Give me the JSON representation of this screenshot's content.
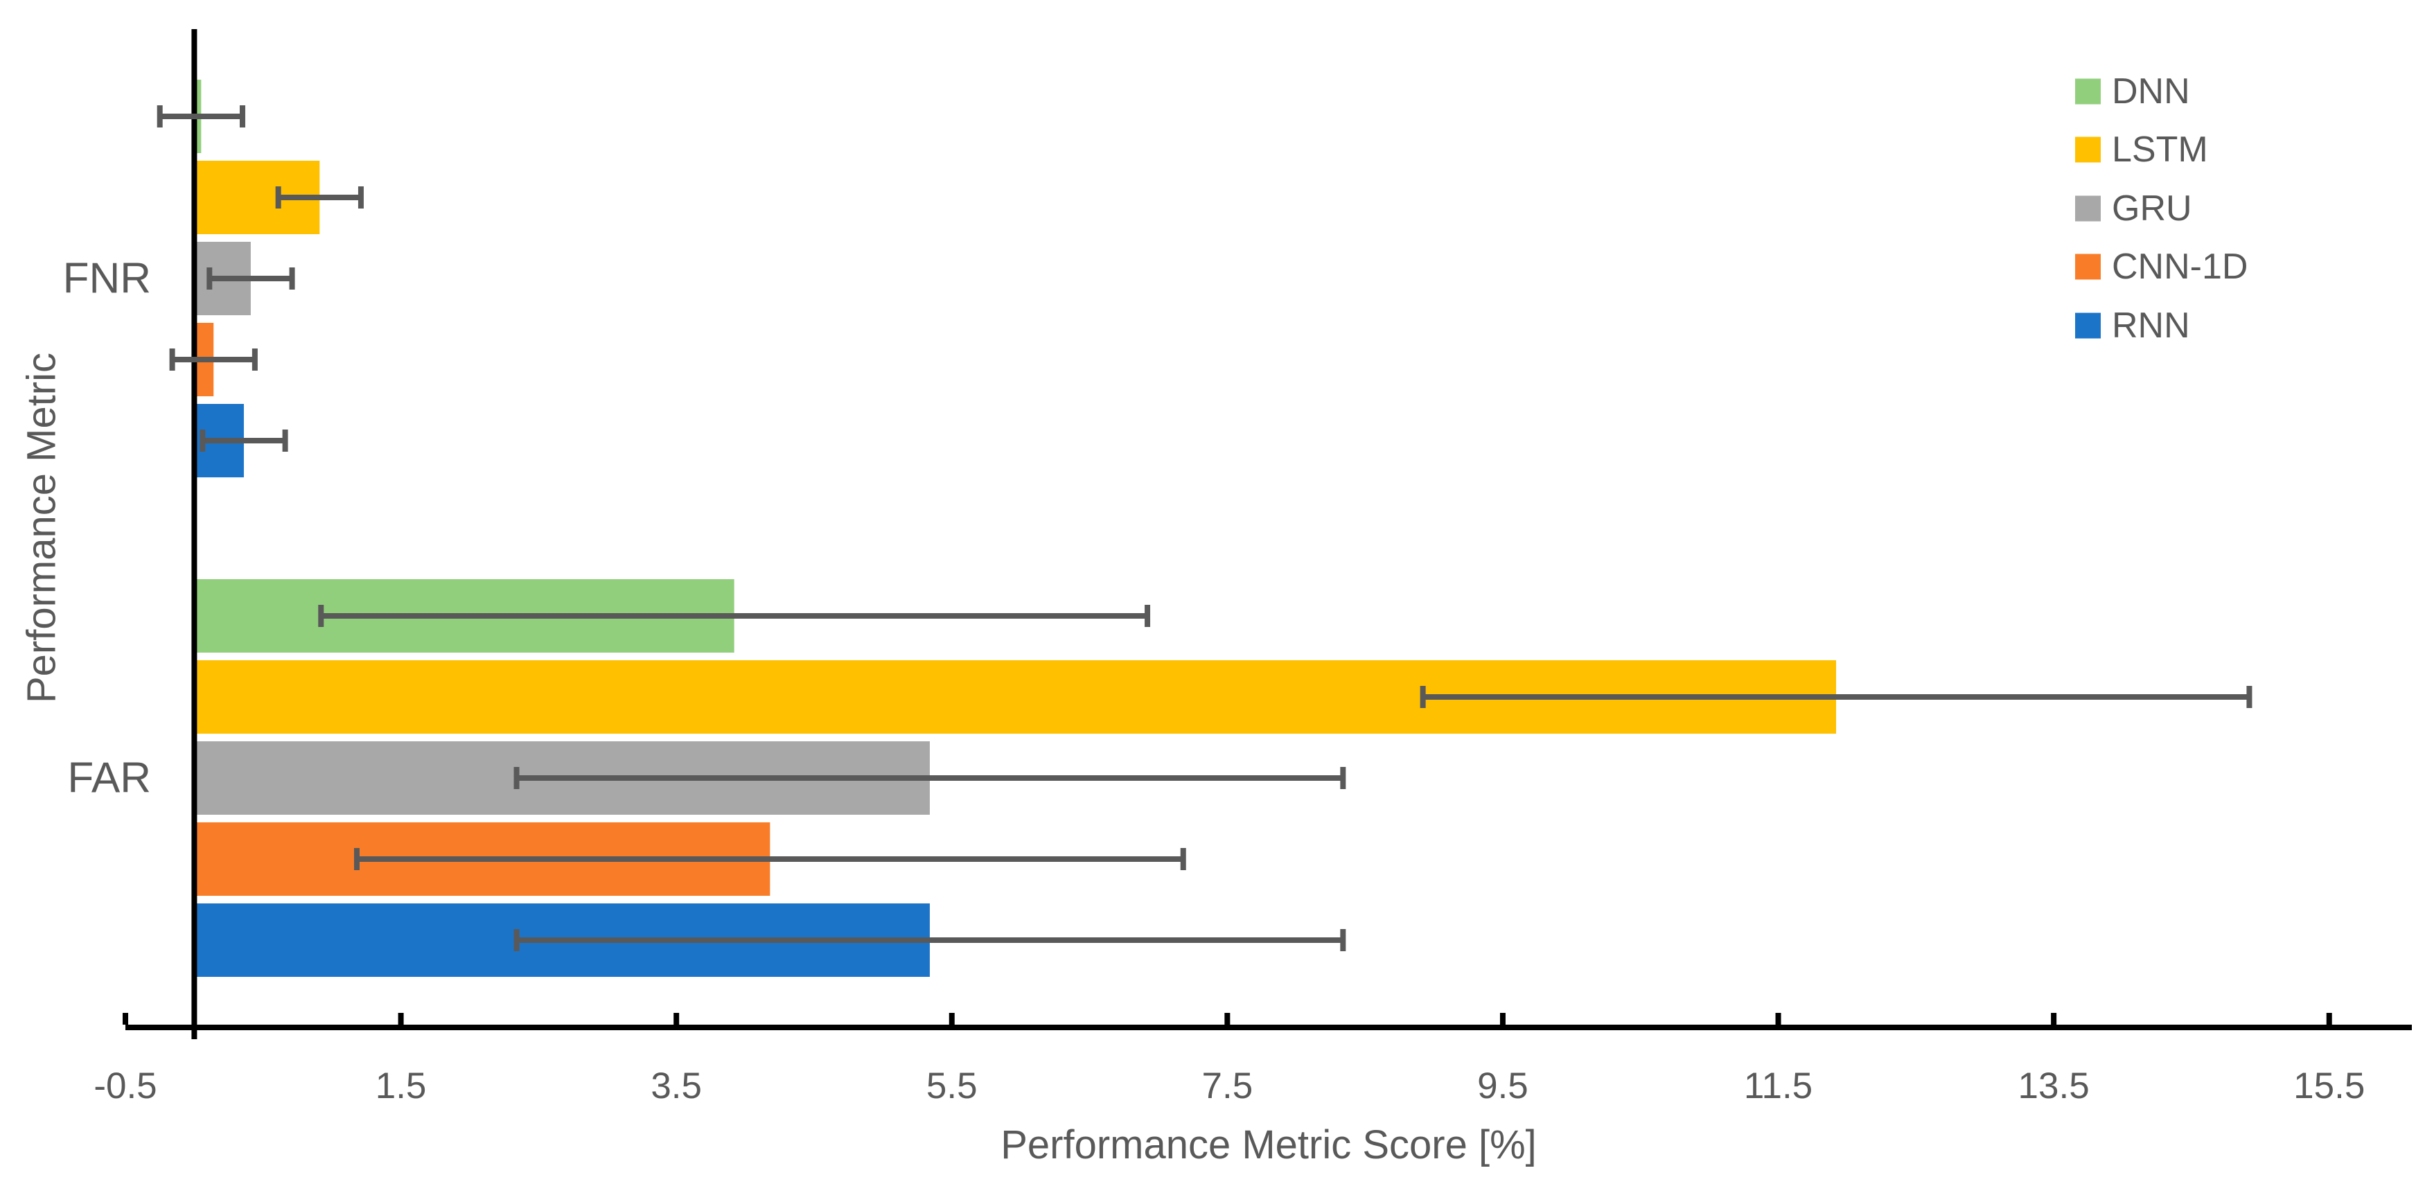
{
  "chart_data": {
    "type": "bar",
    "orientation": "horizontal",
    "title": "",
    "xlabel": "Performance Metric Score [%]",
    "ylabel": "Performance Metric",
    "categories": [
      "FNR",
      "FAR"
    ],
    "x_ticks": [
      -0.5,
      1.5,
      3.5,
      5.5,
      7.5,
      9.5,
      11.5,
      13.5,
      15.5
    ],
    "x_tick_labels": [
      "-0.5",
      "1.5",
      "3.5",
      "5.5",
      "7.5",
      "9.5",
      "11.5",
      "13.5",
      "15.5"
    ],
    "xlim": [
      -0.5,
      16.1
    ],
    "grid": false,
    "legend": {
      "position": "top-right",
      "entries": [
        "DNN",
        "LSTM",
        "GRU",
        "CNN-1D",
        "RNN"
      ]
    },
    "series": [
      {
        "name": "DNN",
        "color": "#92CF7C",
        "values": [
          0.05,
          3.92
        ],
        "errors": [
          0.3,
          3.0
        ]
      },
      {
        "name": "LSTM",
        "color": "#FFC000",
        "values": [
          0.91,
          11.92
        ],
        "errors": [
          0.3,
          3.0
        ]
      },
      {
        "name": "GRU",
        "color": "#A8A8A8",
        "values": [
          0.41,
          5.34
        ],
        "errors": [
          0.3,
          3.0
        ]
      },
      {
        "name": "CNN-1D",
        "color": "#F97D28",
        "values": [
          0.14,
          4.18
        ],
        "errors": [
          0.3,
          3.0
        ]
      },
      {
        "name": "RNN",
        "color": "#1C74C8",
        "values": [
          0.36,
          5.34
        ],
        "errors": [
          0.3,
          3.0
        ]
      }
    ],
    "styles": {
      "error_bar_color": "#595959",
      "axis_color": "#000000",
      "text_color": "#595959",
      "background": "#FFFFFF"
    }
  }
}
